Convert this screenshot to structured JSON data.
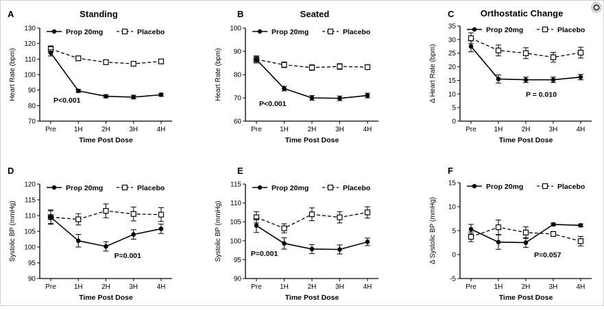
{
  "chart_data": [
    {
      "type": "line",
      "panel_letter": "A",
      "title": "Standing",
      "xlabel": "Time Post Dose",
      "ylabel": "Heart Rate (bpm)",
      "categories": [
        "Pre",
        "1H",
        "2H",
        "3H",
        "4H"
      ],
      "ylim": [
        70,
        130
      ],
      "yticks": [
        "70",
        "80",
        "90",
        "100",
        "110",
        "120",
        "130"
      ],
      "ytick_values": [
        70,
        80,
        90,
        100,
        110,
        120,
        130
      ],
      "legend": [
        "Prop 20mg",
        "Placebo"
      ],
      "pvalue": "P<0.001",
      "pvalue_at": [
        0.1,
        82
      ],
      "series": [
        {
          "name": "Prop 20mg",
          "marker": "filled-circle",
          "line": "solid",
          "values": [
            114,
            89.5,
            86,
            85.5,
            87
          ],
          "errors": [
            2,
            1,
            1,
            1.2,
            1
          ]
        },
        {
          "name": "Placebo",
          "marker": "open-square",
          "line": "dashed",
          "values": [
            116.5,
            110.5,
            108,
            107,
            108.5
          ],
          "errors": [
            2,
            1.5,
            1.5,
            1.5,
            1.5
          ]
        }
      ]
    },
    {
      "type": "line",
      "panel_letter": "B",
      "title": "Seated",
      "xlabel": "Time Post Dose",
      "ylabel": "Heart Rate (bpm)",
      "categories": [
        "Pre",
        "1H",
        "2H",
        "3H",
        "4H"
      ],
      "ylim": [
        60,
        100
      ],
      "yticks": [
        "60",
        "70",
        "80",
        "90",
        "100"
      ],
      "ytick_values": [
        60,
        70,
        80,
        90,
        100
      ],
      "legend": [
        "Prop 20mg",
        "Placebo"
      ],
      "pvalue": "P<0.001",
      "pvalue_at": [
        0.1,
        66.5
      ],
      "series": [
        {
          "name": "Prop 20mg",
          "marker": "filled-circle",
          "line": "solid",
          "values": [
            86.5,
            74,
            70,
            69.8,
            71
          ],
          "errors": [
            1.5,
            1,
            1,
            1,
            1
          ]
        },
        {
          "name": "Placebo",
          "marker": "open-square",
          "line": "dashed",
          "values": [
            86.5,
            84.2,
            83,
            83.5,
            83.2
          ],
          "errors": [
            1.5,
            1.2,
            1.2,
            1.2,
            1
          ]
        }
      ]
    },
    {
      "type": "line",
      "panel_letter": "C",
      "title": "Orthostatic Change",
      "xlabel": "Time Post Dose",
      "ylabel": "Δ Heart Rate (bpm)",
      "categories": [
        "Pre",
        "1H",
        "2H",
        "3H",
        "4H"
      ],
      "ylim": [
        0,
        35
      ],
      "yticks": [
        "0",
        "5",
        "10",
        "15",
        "20",
        "25",
        "30",
        "35"
      ],
      "ytick_values": [
        0,
        5,
        10,
        15,
        20,
        25,
        30,
        35
      ],
      "legend": [
        "Prop 20mg",
        "Placebo"
      ],
      "pvalue": "P = 0.010",
      "pvalue_at": [
        2.0,
        9
      ],
      "series": [
        {
          "name": "Prop 20mg",
          "marker": "filled-circle",
          "line": "solid",
          "values": [
            27.5,
            15.5,
            15.2,
            15.2,
            16.2
          ],
          "errors": [
            2,
            1.5,
            1,
            1,
            1
          ]
        },
        {
          "name": "Placebo",
          "marker": "open-square",
          "line": "dashed",
          "values": [
            30.5,
            26,
            25,
            23.5,
            25.2
          ],
          "errors": [
            2,
            2,
            2,
            1.8,
            2
          ]
        }
      ]
    },
    {
      "type": "line",
      "panel_letter": "D",
      "title": "",
      "xlabel": "Time Post Dose",
      "ylabel": "Systolic BP (mmHg)",
      "categories": [
        "Pre",
        "1H",
        "2H",
        "3H",
        "4H"
      ],
      "ylim": [
        90,
        120
      ],
      "yticks": [
        "90",
        "95",
        "100",
        "105",
        "110",
        "115",
        "120"
      ],
      "ytick_values": [
        90,
        95,
        100,
        105,
        110,
        115,
        120
      ],
      "legend": [
        "Prop 20mg",
        "Placebo"
      ],
      "pvalue": "P=0.001",
      "pvalue_at": [
        2.3,
        96.5
      ],
      "series": [
        {
          "name": "Prop 20mg",
          "marker": "filled-circle",
          "line": "solid",
          "values": [
            109.5,
            102,
            100.2,
            104,
            105.8
          ],
          "errors": [
            2,
            2,
            1.5,
            1.5,
            1.5
          ]
        },
        {
          "name": "Placebo",
          "marker": "open-square",
          "line": "dashed",
          "values": [
            109.5,
            108.8,
            111.5,
            110.5,
            110.3
          ],
          "errors": [
            2.3,
            1.8,
            2.2,
            2.2,
            2.2
          ]
        }
      ]
    },
    {
      "type": "line",
      "panel_letter": "E",
      "title": "",
      "xlabel": "Time Post Dose",
      "ylabel": "Systolic BP (mmHg)",
      "categories": [
        "Pre",
        "1H",
        "2H",
        "3H",
        "4H"
      ],
      "ylim": [
        90,
        115
      ],
      "yticks": [
        "90",
        "95",
        "100",
        "105",
        "110",
        "115"
      ],
      "ytick_values": [
        90,
        95,
        100,
        105,
        110,
        115
      ],
      "legend": [
        "Prop 20mg",
        "Placebo"
      ],
      "pvalue": "P=0.001",
      "pvalue_at": [
        -0.2,
        96
      ],
      "series": [
        {
          "name": "Prop 20mg",
          "marker": "filled-circle",
          "line": "solid",
          "values": [
            104,
            99.3,
            97.8,
            97.7,
            99.7
          ],
          "errors": [
            1.8,
            1.5,
            1.2,
            1.2,
            1
          ]
        },
        {
          "name": "Placebo",
          "marker": "open-square",
          "line": "dashed",
          "values": [
            106.2,
            103.3,
            107,
            106.2,
            107.5
          ],
          "errors": [
            1.5,
            1.2,
            1.7,
            1.5,
            1.5
          ]
        }
      ]
    },
    {
      "type": "line",
      "panel_letter": "F",
      "title": "",
      "xlabel": "Time Post Dose",
      "ylabel": "Δ Systolic BP (mmHg)",
      "categories": [
        "Pre",
        "1H",
        "2H",
        "3H",
        "4H"
      ],
      "ylim": [
        -5,
        15
      ],
      "yticks": [
        "-5",
        "0",
        "5",
        "10",
        "15"
      ],
      "ytick_values": [
        -5,
        0,
        5,
        10,
        15
      ],
      "legend": [
        "Prop 20mg",
        "Placebo"
      ],
      "pvalue": "P=0.057",
      "pvalue_at": [
        2.3,
        -0.6
      ],
      "series": [
        {
          "name": "Prop 20mg",
          "marker": "filled-circle",
          "line": "solid",
          "values": [
            5.3,
            2.6,
            2.5,
            6.3,
            6.1
          ],
          "errors": [
            1,
            1.5,
            1,
            0.3,
            0.3
          ]
        },
        {
          "name": "Placebo",
          "marker": "open-square",
          "line": "dashed",
          "values": [
            3.7,
            5.7,
            4.6,
            4.3,
            2.8
          ],
          "errors": [
            1,
            1.5,
            1.2,
            0.5,
            1
          ]
        }
      ]
    }
  ],
  "ui": {
    "corner_icon": "circle-gear-icon"
  }
}
